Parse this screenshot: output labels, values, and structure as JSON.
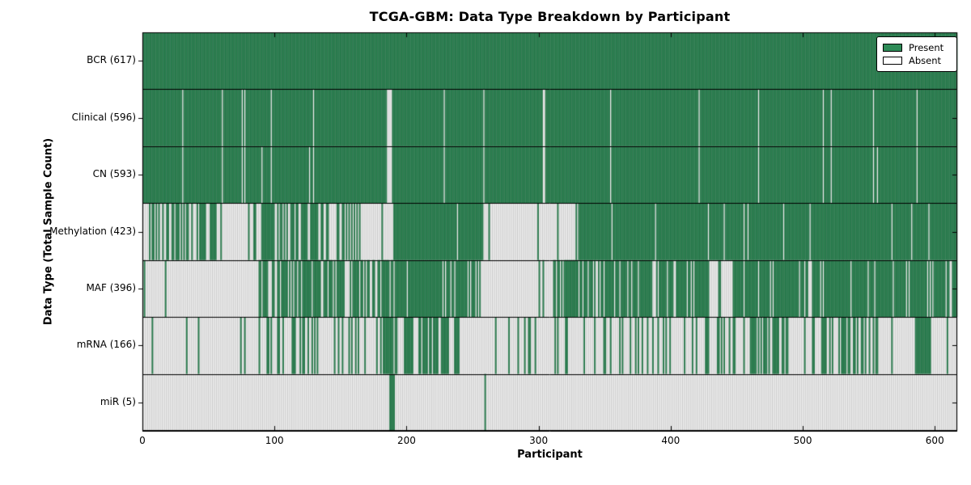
{
  "chart_data": {
    "type": "heatmap",
    "title": "TCGA-GBM: Data Type Breakdown by Participant",
    "xlabel": "Participant",
    "ylabel": "Data Type (Total Sample Count)",
    "x_ticks": [
      0,
      100,
      200,
      300,
      400,
      500,
      600
    ],
    "x_range": [
      0,
      617
    ],
    "n_participants": 617,
    "grid": false,
    "legend_position": "upper right",
    "legend": [
      {
        "label": "Present",
        "color": "#2E8B57"
      },
      {
        "label": "Absent",
        "color": "#ffffff"
      }
    ],
    "colors": {
      "present": "#2E8B57",
      "absent": "#ffffff",
      "bar_edge": "rgba(0,0,0,0.30)",
      "separator": "#000000",
      "spine": "#000000"
    },
    "rows": [
      {
        "name": "BCR",
        "label": "BCR (617)",
        "total": 617,
        "pattern": {
          "mode": "all_present"
        }
      },
      {
        "name": "Clinical",
        "label": "Clinical (596)",
        "total": 596,
        "pattern": {
          "mode": "absent_list",
          "absent": [
            30,
            60,
            75,
            77,
            97,
            129,
            185,
            186,
            187,
            188,
            228,
            258,
            303,
            304,
            354,
            421,
            466,
            515,
            521,
            553,
            586
          ]
        }
      },
      {
        "name": "CN",
        "label": "CN (593)",
        "total": 593,
        "pattern": {
          "mode": "absent_list",
          "absent": [
            30,
            60,
            75,
            77,
            90,
            97,
            126,
            129,
            185,
            186,
            187,
            188,
            228,
            258,
            303,
            304,
            354,
            421,
            466,
            515,
            521,
            553,
            556,
            586
          ]
        }
      },
      {
        "name": "Methylation",
        "label": "Methylation (423)",
        "total": 423,
        "pattern": {
          "mode": "segments",
          "segments": [
            [
              0,
              14,
              0.5
            ],
            [
              14,
              57,
              0.45
            ],
            [
              57,
              90,
              0.12
            ],
            [
              90,
              106,
              0.92
            ],
            [
              106,
              138,
              0.58
            ],
            [
              138,
              193,
              0.35
            ],
            [
              193,
              258,
              0.98
            ],
            [
              258,
              330,
              0.08
            ],
            [
              330,
              617,
              0.95
            ]
          ]
        }
      },
      {
        "name": "MAF",
        "label": "MAF (396)",
        "total": 396,
        "pattern": {
          "mode": "segments",
          "segments": [
            [
              0,
              88,
              0.06
            ],
            [
              88,
              138,
              0.68
            ],
            [
              138,
              177,
              0.52
            ],
            [
              177,
              256,
              0.85
            ],
            [
              256,
              311,
              0.1
            ],
            [
              311,
              350,
              0.65
            ],
            [
              350,
              430,
              0.75
            ],
            [
              430,
              446,
              0.3
            ],
            [
              446,
              617,
              0.88
            ]
          ]
        }
      },
      {
        "name": "mRNA",
        "label": "mRNA (166)",
        "total": 166,
        "pattern": {
          "mode": "segments",
          "segments": [
            [
              0,
              88,
              0.03
            ],
            [
              88,
              118,
              0.3
            ],
            [
              118,
              150,
              0.12
            ],
            [
              150,
              180,
              0.35
            ],
            [
              180,
              240,
              0.6
            ],
            [
              240,
              287,
              0.08
            ],
            [
              287,
              354,
              0.1
            ],
            [
              354,
              433,
              0.28
            ],
            [
              433,
              551,
              0.4
            ],
            [
              551,
              588,
              0.15
            ],
            [
              588,
              597,
              0.9
            ],
            [
              597,
              617,
              0.05
            ]
          ]
        }
      },
      {
        "name": "miR",
        "label": "miR (5)",
        "total": 5,
        "pattern": {
          "mode": "present_list",
          "present": [
            187,
            188,
            189,
            190,
            259
          ]
        }
      }
    ]
  }
}
